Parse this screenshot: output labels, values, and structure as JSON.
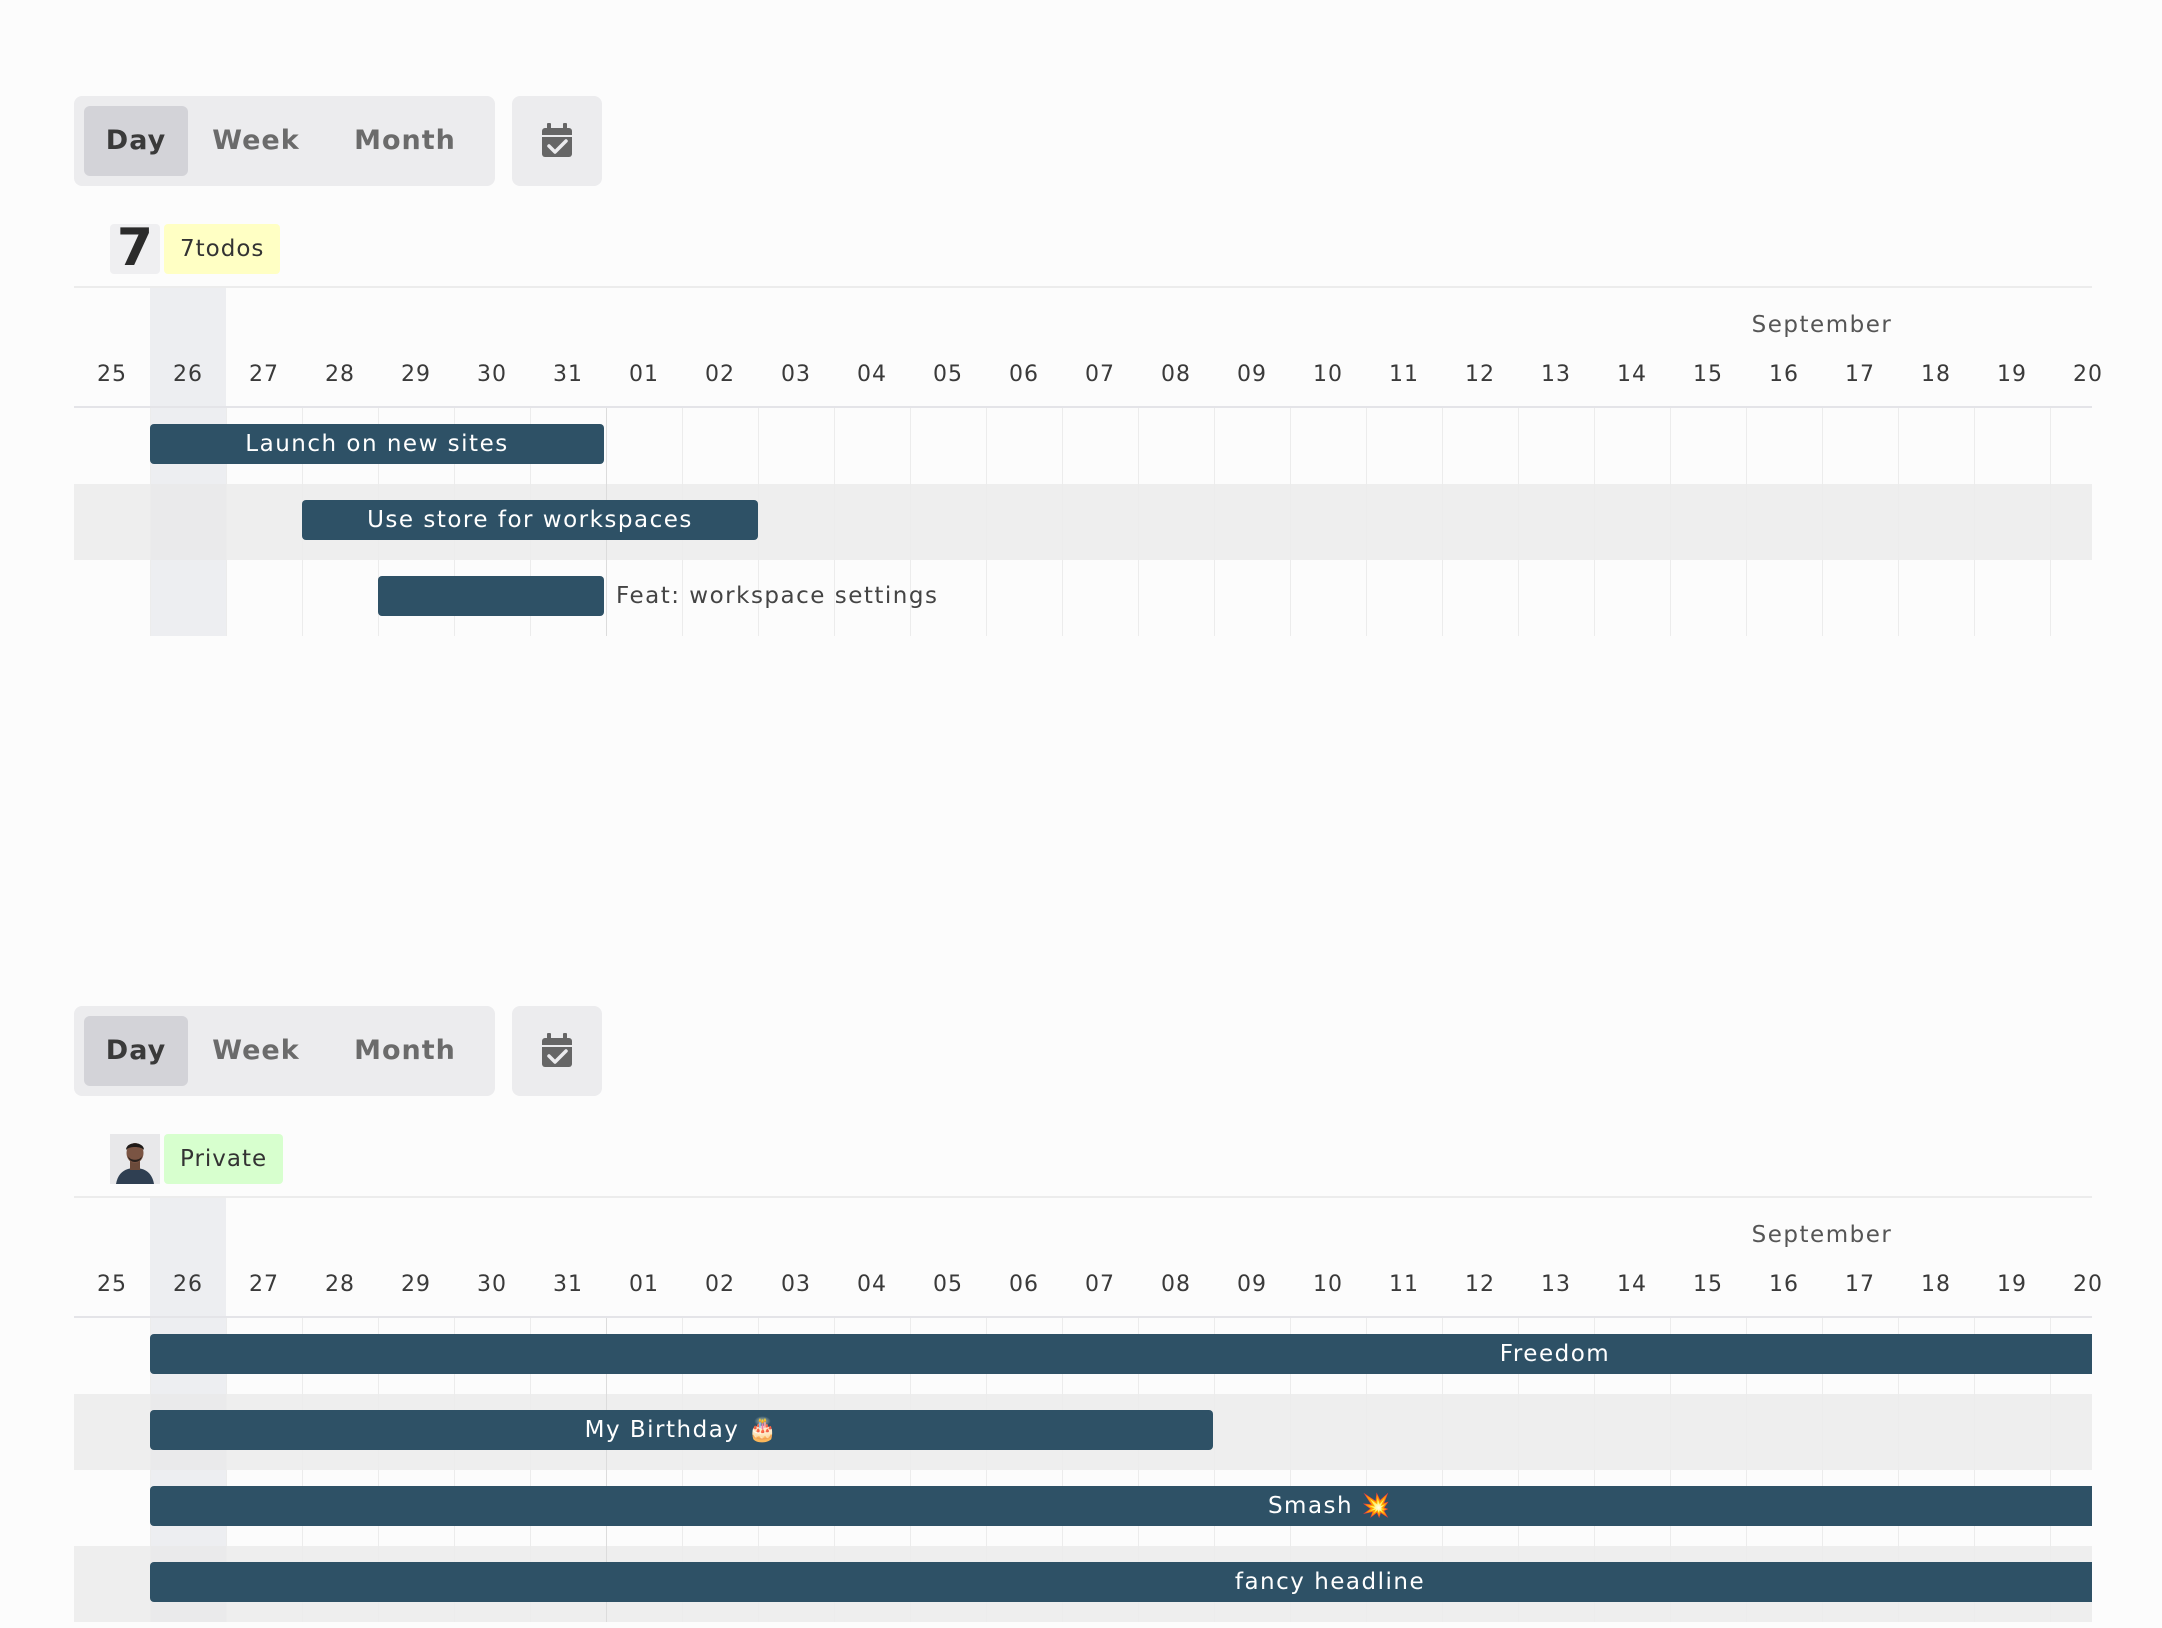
{
  "panels": [
    {
      "view_options": [
        "Day",
        "Week",
        "Month"
      ],
      "selected_view": "Day",
      "calendar_icon": "calendar-check-icon",
      "project": {
        "avatar": "seven-logo",
        "avatar_text": "7",
        "tag": "7todos",
        "tag_color": "#ffffc4"
      },
      "month_label": "September",
      "days": [
        "25",
        "26",
        "27",
        "28",
        "29",
        "30",
        "31",
        "01",
        "02",
        "03",
        "04",
        "05",
        "06",
        "07",
        "08",
        "09",
        "10",
        "11",
        "12",
        "13",
        "14",
        "15",
        "16",
        "17",
        "18",
        "19",
        "20"
      ],
      "today": "26",
      "tasks": [
        {
          "label": "Launch on new sites",
          "start": "26",
          "end": "31",
          "label_position": "inside"
        },
        {
          "label": "Use store for workspaces",
          "start": "28",
          "end": "02",
          "label_position": "inside"
        },
        {
          "label": "Feat: workspace settings",
          "start": "29",
          "end": "31",
          "label_position": "outside"
        }
      ]
    },
    {
      "view_options": [
        "Day",
        "Week",
        "Month"
      ],
      "selected_view": "Day",
      "calendar_icon": "calendar-check-icon",
      "project": {
        "avatar": "user-photo",
        "tag": "Private",
        "tag_color": "#d7ffce"
      },
      "month_label": "September",
      "days": [
        "25",
        "26",
        "27",
        "28",
        "29",
        "30",
        "31",
        "01",
        "02",
        "03",
        "04",
        "05",
        "06",
        "07",
        "08",
        "09",
        "10",
        "11",
        "12",
        "13",
        "14",
        "15",
        "16",
        "17",
        "18",
        "19",
        "20"
      ],
      "today": "26",
      "tasks": [
        {
          "label": "Freedom",
          "start": "26",
          "end": "beyond-view",
          "label_position": "inside"
        },
        {
          "label": "My Birthday 🎂",
          "start": "26",
          "end": "08",
          "label_position": "inside"
        },
        {
          "label": "Smash 💥",
          "start": "26",
          "end": "beyond-view",
          "label_position": "inside"
        },
        {
          "label": "fancy headline",
          "start": "26",
          "end": "beyond-view",
          "label_position": "inside"
        }
      ]
    }
  ],
  "colors": {
    "task_bar": "#2e5166",
    "toolbar_bg": "#ececee",
    "selected_view_bg": "#d3d3d8"
  }
}
